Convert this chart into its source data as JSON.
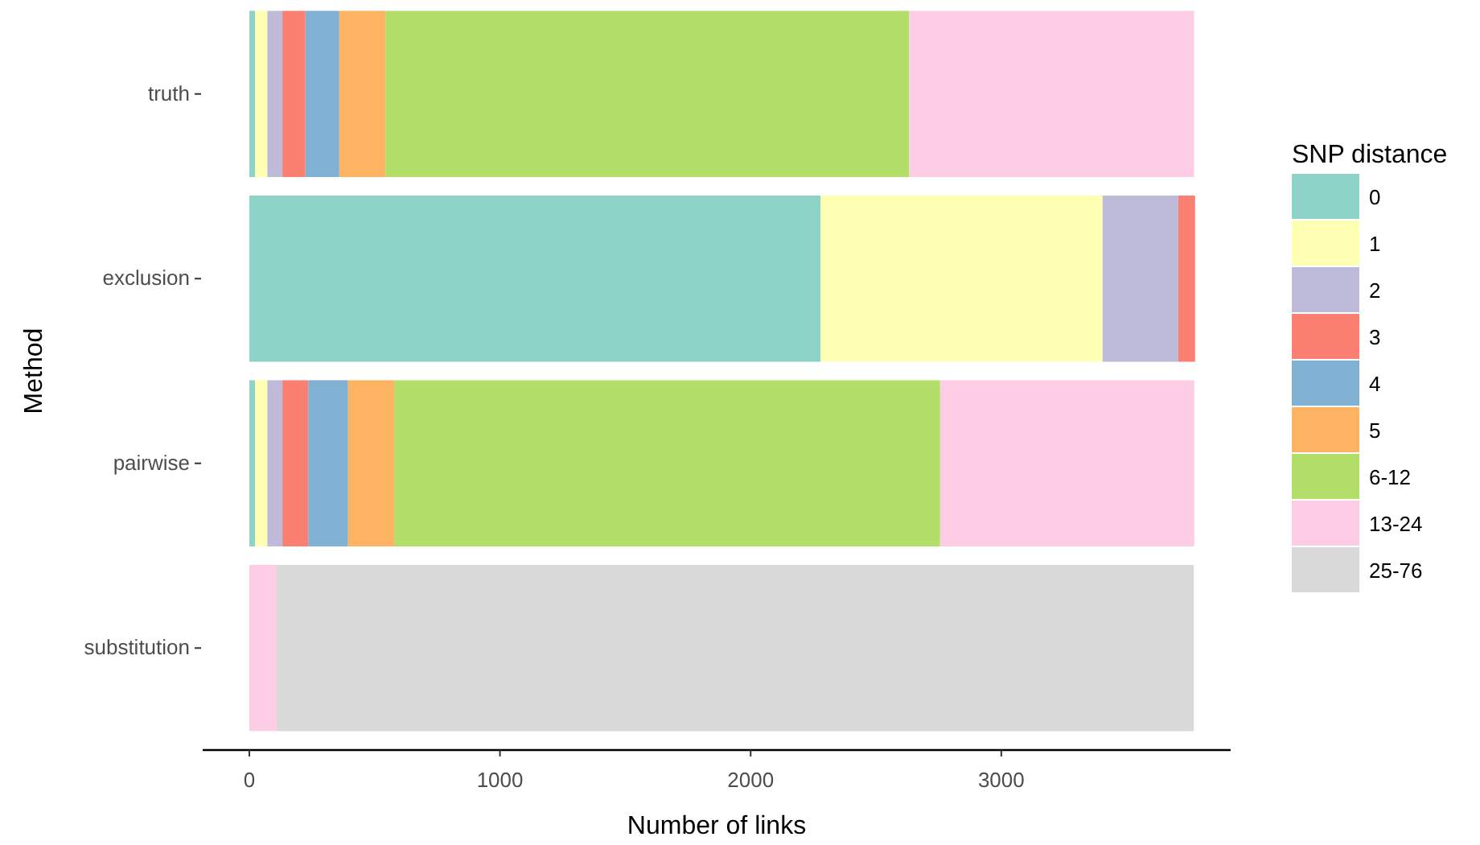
{
  "chart_data": {
    "type": "bar",
    "orientation": "horizontal",
    "stacked": true,
    "xlabel": "Number of links",
    "ylabel": "Method",
    "legend_title": "SNP distance",
    "legend": "right",
    "grid": false,
    "categories": [
      "truth",
      "exclusion",
      "pairwise",
      "substitution"
    ],
    "xlim": [
      -186,
      3915
    ],
    "xticks": [
      0,
      1000,
      2000,
      3000
    ],
    "series": [
      {
        "name": "0",
        "color": "#8dd3c7",
        "values": [
          23,
          2279,
          23,
          0
        ]
      },
      {
        "name": "1",
        "color": "#ffffb3",
        "values": [
          49,
          1125,
          49,
          0
        ]
      },
      {
        "name": "2",
        "color": "#bebada",
        "values": [
          60,
          302,
          60,
          0
        ]
      },
      {
        "name": "3",
        "color": "#fb8072",
        "values": [
          92,
          67,
          103,
          0
        ]
      },
      {
        "name": "4",
        "color": "#80b1d3",
        "values": [
          135,
          0,
          159,
          0
        ]
      },
      {
        "name": "5",
        "color": "#fdb462",
        "values": [
          184,
          0,
          184,
          0
        ]
      },
      {
        "name": "6-12",
        "color": "#b3de69",
        "values": [
          2090,
          0,
          2178,
          0
        ]
      },
      {
        "name": "13-24",
        "color": "#fccde5",
        "values": [
          1136,
          0,
          1014,
          109
        ]
      },
      {
        "name": "25-76",
        "color": "#d9d9d9",
        "values": [
          0,
          0,
          0,
          3659
        ]
      }
    ]
  }
}
